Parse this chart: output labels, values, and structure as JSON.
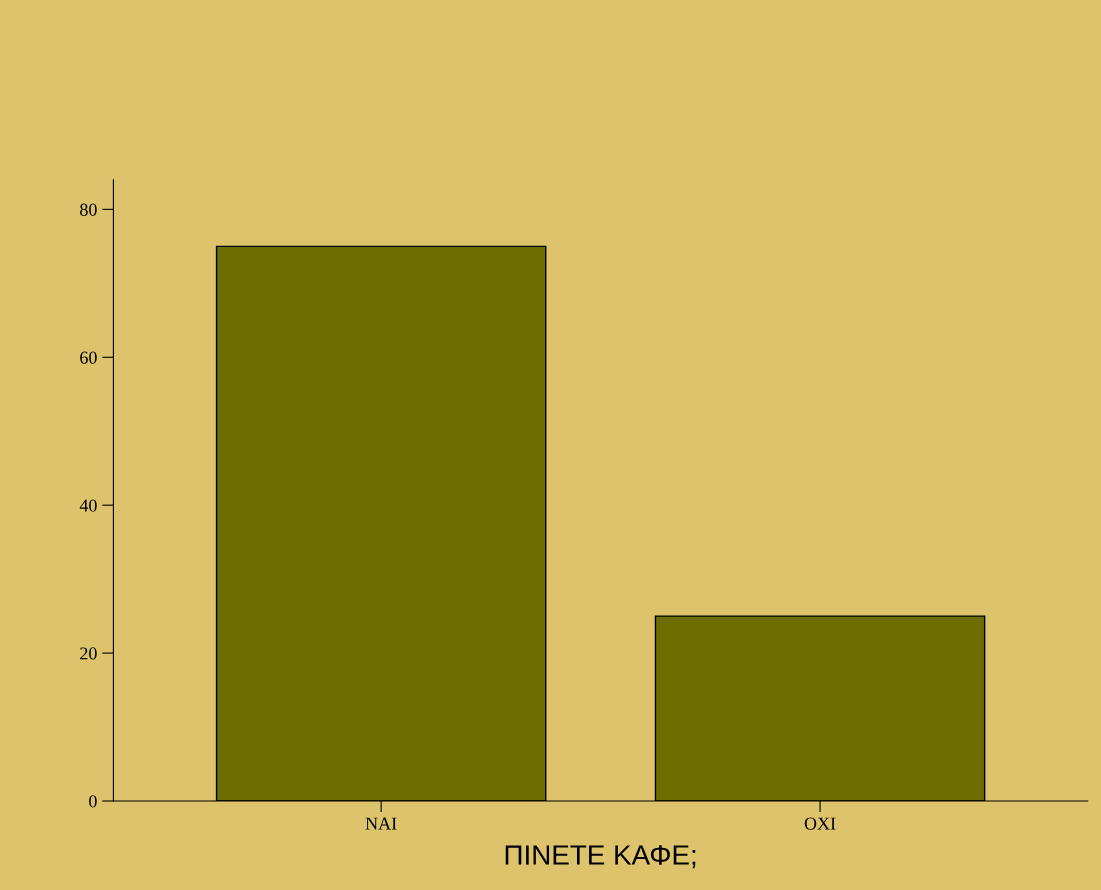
{
  "chart_data": {
    "type": "bar",
    "xlabel": "ΠΙΝΕΤΕ ΚΑΦΕ;",
    "categories": [
      "ΝΑΙ",
      "ΟΧΙ"
    ],
    "values": [
      75,
      25
    ],
    "color": "#6e6e00",
    "ylim": [
      0,
      84
    ],
    "yticks": [
      0,
      20,
      40,
      60,
      80
    ],
    "grid": false
  }
}
